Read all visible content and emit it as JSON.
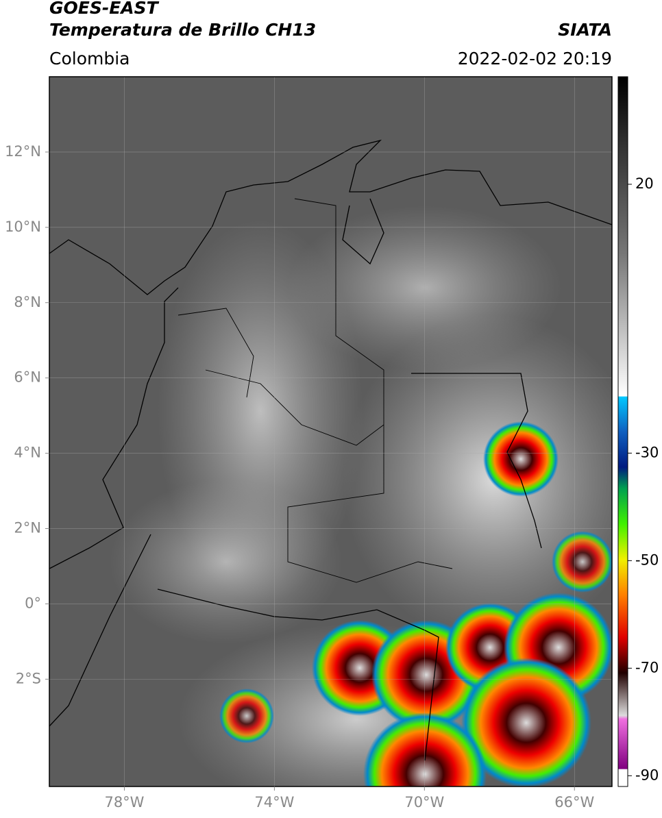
{
  "header": {
    "title": "GOES-EAST",
    "subtitle": "Temperatura de Brillo CH13",
    "region": "Colombia",
    "source": "SIATA",
    "timestamp": "2022-02-02 20:19"
  },
  "map": {
    "xlim": [
      -80,
      -65
    ],
    "ylim": [
      -4.85,
      14
    ],
    "grid": true,
    "xticks": [
      {
        "value": -78,
        "label": "78°W"
      },
      {
        "value": -74,
        "label": "74°W"
      },
      {
        "value": -70,
        "label": "70°W"
      },
      {
        "value": -66,
        "label": "66°W"
      }
    ],
    "yticks": [
      {
        "value": 12,
        "label": "12°N"
      },
      {
        "value": 10,
        "label": "10°N"
      },
      {
        "value": 8,
        "label": "8°N"
      },
      {
        "value": 6,
        "label": "6°N"
      },
      {
        "value": 4,
        "label": "4°N"
      },
      {
        "value": 2,
        "label": "2°N"
      },
      {
        "value": 0,
        "label": "0°"
      },
      {
        "value": -2,
        "label": "2°S"
      }
    ]
  },
  "colorbar": {
    "lim": [
      -92,
      40
    ],
    "ticks": [
      20,
      -30,
      -50,
      -70,
      -90
    ]
  }
}
